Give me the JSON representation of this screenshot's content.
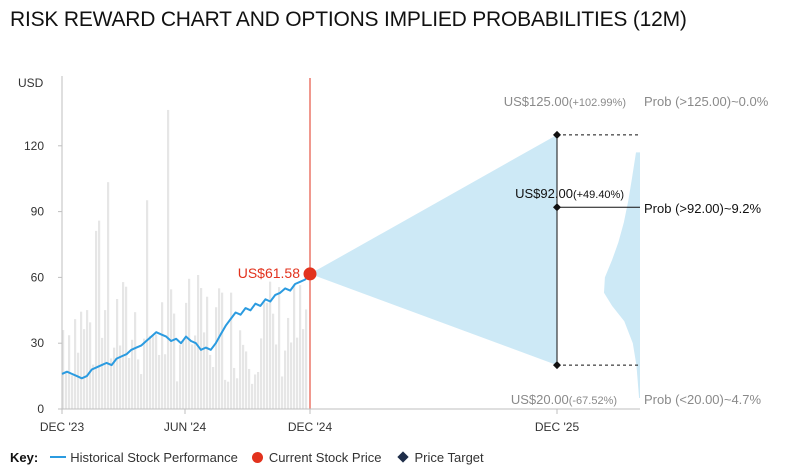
{
  "title": "RISK REWARD CHART AND OPTIONS IMPLIED PROBABILITIES (12M)",
  "colors": {
    "history": "#2b9be0",
    "volume": "#e6e6e6",
    "current": "#e2321d",
    "cone": "#cde9f6",
    "target": "#111111"
  },
  "chart_data": {
    "type": "line",
    "ylabel": "USD",
    "ylim": [
      0,
      150
    ],
    "yticks": [
      0,
      30,
      60,
      90,
      120
    ],
    "x_ticks": [
      "DEC '23",
      "JUN '24",
      "DEC '24",
      "DEC '25"
    ],
    "history": {
      "name": "Historical Stock Performance",
      "x": [
        0,
        0.02,
        0.04,
        0.06,
        0.08,
        0.1,
        0.12,
        0.14,
        0.16,
        0.18,
        0.2,
        0.22,
        0.24,
        0.26,
        0.28,
        0.3,
        0.32,
        0.34,
        0.36,
        0.38,
        0.4,
        0.42,
        0.44,
        0.46,
        0.48,
        0.5,
        0.52,
        0.54,
        0.56,
        0.58,
        0.6,
        0.62,
        0.64,
        0.66,
        0.68,
        0.7,
        0.72,
        0.74,
        0.76,
        0.78,
        0.8,
        0.82,
        0.84,
        0.86,
        0.88,
        0.9,
        0.92,
        0.94,
        0.96,
        0.98,
        1.0
      ],
      "values": [
        16,
        17,
        16,
        15,
        14,
        15,
        18,
        19,
        20,
        21,
        20,
        23,
        24,
        25,
        27,
        28,
        29,
        31,
        33,
        35,
        34,
        33,
        31,
        32,
        30,
        33,
        31,
        30,
        27,
        28,
        27,
        30,
        34,
        38,
        41,
        44,
        43,
        46,
        45,
        48,
        47,
        50,
        49,
        52,
        53,
        55,
        54,
        57,
        58,
        59,
        61.58
      ]
    },
    "volume_note": "Daily volume bars (relative scale)",
    "current": {
      "name": "Current Stock Price",
      "label": "US$61.58",
      "value": 61.58,
      "at": "DEC '24"
    },
    "targets": {
      "name": "Price Target",
      "at": "DEC '25",
      "high": {
        "value": 125.0,
        "price": "US$125.00",
        "change": "(+102.99%)",
        "prob": "Prob (>125.00)~0.0%"
      },
      "mid": {
        "value": 92.0,
        "price": "US$92.00",
        "change": "(+49.40%)",
        "prob": "Prob (>92.00)~9.2%"
      },
      "low": {
        "value": 20.0,
        "price": "US$20.00",
        "change": "(-67.52%)",
        "prob": "Prob (<20.00)~4.7%"
      }
    },
    "distribution_note": "Options implied probability distribution (shape)",
    "distribution": [
      {
        "price": 5,
        "density": 0.02
      },
      {
        "price": 20,
        "density": 0.08
      },
      {
        "price": 30,
        "density": 0.16
      },
      {
        "price": 40,
        "density": 0.35
      },
      {
        "price": 47,
        "density": 0.62
      },
      {
        "price": 53,
        "density": 0.8
      },
      {
        "price": 60,
        "density": 0.78
      },
      {
        "price": 68,
        "density": 0.62
      },
      {
        "price": 76,
        "density": 0.48
      },
      {
        "price": 85,
        "density": 0.36
      },
      {
        "price": 95,
        "density": 0.26
      },
      {
        "price": 105,
        "density": 0.18
      },
      {
        "price": 117,
        "density": 0.09
      }
    ]
  },
  "legend": {
    "key": "Key:",
    "history": "Historical Stock Performance",
    "current": "Current Stock Price",
    "target": "Price Target"
  }
}
